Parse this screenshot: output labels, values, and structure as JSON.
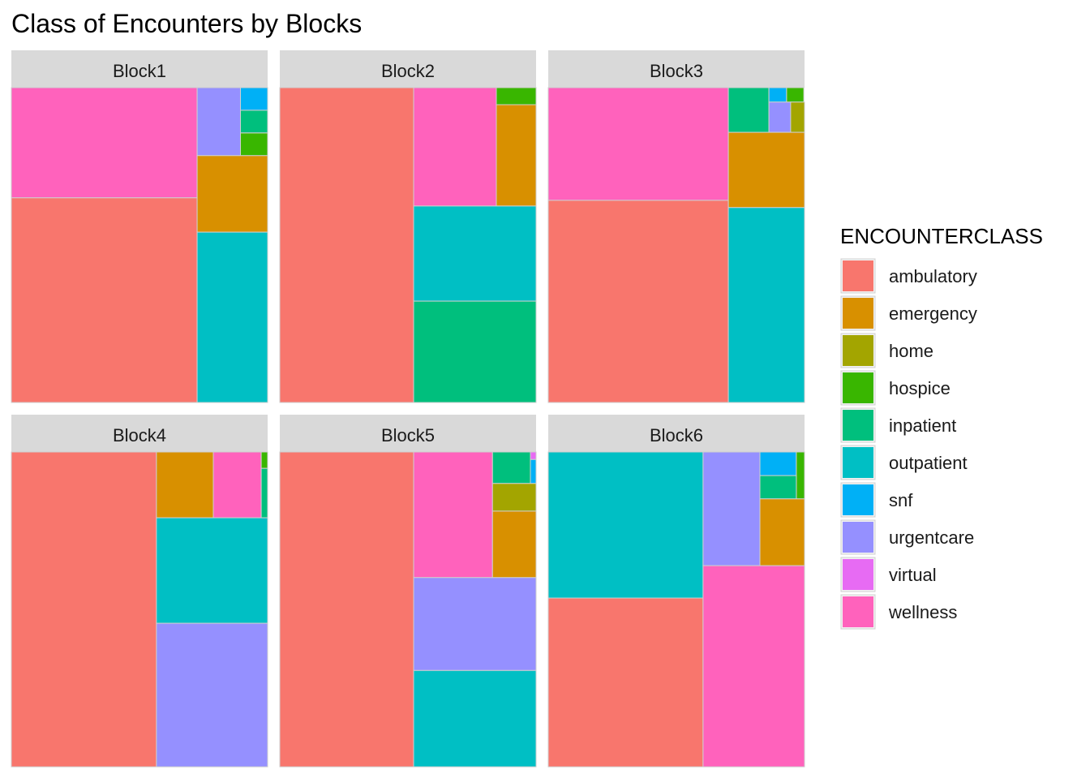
{
  "chart_data": {
    "type": "treemap",
    "title": "Class of Encounters by Blocks",
    "legend": {
      "title": "ENCOUNTERCLASS",
      "placement": "right",
      "entries": [
        {
          "name": "ambulatory",
          "color": "#F8766D"
        },
        {
          "name": "emergency",
          "color": "#D89000"
        },
        {
          "name": "home",
          "color": "#A3A500"
        },
        {
          "name": "hospice",
          "color": "#39B600"
        },
        {
          "name": "inpatient",
          "color": "#00BF7D"
        },
        {
          "name": "outpatient",
          "color": "#00BFC4"
        },
        {
          "name": "snf",
          "color": "#00B0F6"
        },
        {
          "name": "urgentcare",
          "color": "#9590FF"
        },
        {
          "name": "virtual",
          "color": "#E76BF3"
        },
        {
          "name": "wellness",
          "color": "#FF62BC"
        }
      ]
    },
    "facets": [
      {
        "name": "Block1",
        "shares": {
          "ambulatory": 0.523,
          "wellness": 0.252,
          "outpatient": 0.143,
          "emergency": 0.064,
          "urgentcare": 0.044,
          "inpatient": 0.013,
          "hospice": 0.012,
          "snf": 0.011
        }
      },
      {
        "name": "Block2",
        "shares": {
          "ambulatory": 0.522,
          "outpatient": 0.14,
          "inpatient": 0.147,
          "wellness": 0.123,
          "emergency": 0.058,
          "hospice": 0.01
        }
      },
      {
        "name": "Block3",
        "shares": {
          "ambulatory": 0.455,
          "wellness": 0.25,
          "outpatient": 0.183,
          "emergency": 0.071,
          "inpatient": 0.021,
          "urgentcare": 0.008,
          "home": 0.005,
          "snf": 0.004,
          "hospice": 0.003
        }
      },
      {
        "name": "Block4",
        "shares": {
          "ambulatory": 0.568,
          "urgentcare": 0.197,
          "outpatient": 0.143,
          "wellness": 0.045,
          "emergency": 0.04,
          "inpatient": 0.006,
          "hospice": 0.001
        }
      },
      {
        "name": "Block5",
        "shares": {
          "ambulatory": 0.523,
          "outpatient": 0.162,
          "urgentcare": 0.159,
          "wellness": 0.096,
          "emergency": 0.035,
          "inpatient": 0.013,
          "home": 0.008,
          "snf": 0.002,
          "virtual": 0.001
        }
      },
      {
        "name": "Block6",
        "shares": {
          "ambulatory": 0.31,
          "wellness": 0.39,
          "outpatient": 0.22,
          "urgentcare": 0.06,
          "emergency": 0.021,
          "snf": 0.008,
          "inpatient": 0.007,
          "hospice": 0.004
        }
      }
    ]
  }
}
